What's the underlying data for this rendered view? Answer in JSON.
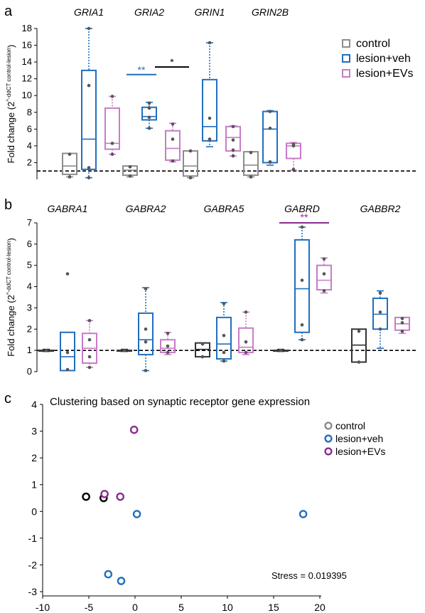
{
  "colors": {
    "control": "#8c8c8c",
    "control_b": "#333333",
    "veh": "#1f6fbf",
    "evs": "#c77cc7",
    "evs_dark": "#8a2d8f",
    "point": "#555555",
    "baseline": "#000000"
  },
  "chart_data": [
    {
      "panel": "a",
      "type": "box",
      "ylabel_main": "Fold change (2",
      "ylabel_sup": "^-ddCT control-lesion",
      "ylabel_end": ")",
      "ylim": [
        0,
        18
      ],
      "yticks": [
        2,
        4,
        6,
        8,
        10,
        12,
        14,
        16,
        18
      ],
      "reference_line": 1,
      "genes": [
        "GRIA1",
        "GRIA2",
        "GRIN1",
        "GRIN2B"
      ],
      "legend": [
        "control",
        "lesion+veh",
        "lesion+EVs"
      ],
      "series": [
        {
          "gene": "GRIA1",
          "group": "control",
          "min": 0.3,
          "q1": 0.6,
          "median": 1.6,
          "q3": 3.1,
          "max": 3.1,
          "points": [
            3.0,
            0.3
          ]
        },
        {
          "gene": "GRIA1",
          "group": "lesion+veh",
          "min": 0.2,
          "q1": 1.2,
          "median": 4.8,
          "q3": 13.0,
          "max": 18.0,
          "points": [
            18.0,
            11.2,
            1.4,
            0.2
          ]
        },
        {
          "gene": "GRIA1",
          "group": "lesion+EVs",
          "min": 3.0,
          "q1": 3.6,
          "median": 4.3,
          "q3": 8.5,
          "max": 9.9,
          "points": [
            9.9,
            4.3,
            3.0
          ]
        },
        {
          "gene": "GRIA2",
          "group": "control",
          "min": 0.3,
          "q1": 0.5,
          "median": 1.1,
          "q3": 1.6,
          "max": 1.6,
          "points": [
            1.5,
            0.4
          ]
        },
        {
          "gene": "GRIA2",
          "group": "lesion+veh",
          "min": 6.1,
          "q1": 7.1,
          "median": 7.5,
          "q3": 8.6,
          "max": 9.2,
          "points": [
            9.1,
            8.5,
            7.4,
            6.1
          ]
        },
        {
          "gene": "GRIA2",
          "group": "lesion+EVs",
          "min": 2.1,
          "q1": 2.3,
          "median": 3.7,
          "q3": 5.8,
          "max": 6.7,
          "points": [
            6.6,
            4.8,
            2.2
          ]
        },
        {
          "gene": "GRIN1",
          "group": "control",
          "min": 0.2,
          "q1": 0.4,
          "median": 1.6,
          "q3": 3.4,
          "max": 3.4,
          "points": [
            3.4,
            0.2
          ]
        },
        {
          "gene": "GRIN1",
          "group": "lesion+veh",
          "min": 3.9,
          "q1": 4.6,
          "median": 6.3,
          "q3": 11.9,
          "max": 16.3,
          "points": [
            16.3,
            7.3,
            4.8
          ]
        },
        {
          "gene": "GRIN1",
          "group": "lesion+EVs",
          "min": 2.8,
          "q1": 3.4,
          "median": 5.0,
          "q3": 6.3,
          "max": 6.4,
          "points": [
            6.3,
            4.7,
            2.8,
            3.5
          ]
        },
        {
          "gene": "GRIN2B",
          "group": "control",
          "min": 0.3,
          "q1": 0.5,
          "median": 1.7,
          "q3": 3.3,
          "max": 3.3,
          "points": [
            3.2,
            0.3
          ]
        },
        {
          "gene": "GRIN2B",
          "group": "lesion+veh",
          "min": 1.7,
          "q1": 2.0,
          "median": 6.0,
          "q3": 8.1,
          "max": 8.2,
          "points": [
            8.1,
            6.1,
            2.1
          ]
        },
        {
          "gene": "GRIN2B",
          "group": "lesion+EVs",
          "min": 1.1,
          "q1": 2.5,
          "median": 4.0,
          "q3": 4.3,
          "max": 4.4,
          "points": [
            4.2,
            4.0,
            1.2
          ]
        }
      ],
      "significance": [
        {
          "label": "**",
          "gene": "GRIA2",
          "from": "control",
          "to": "lesion+veh",
          "y": 12.5,
          "color_key": "veh"
        },
        {
          "label": "*",
          "gene": "GRIA2",
          "from": "lesion+EVs",
          "to": "GRIN1 control",
          "y": 13.4,
          "color_key": "baseline"
        }
      ]
    },
    {
      "panel": "b",
      "type": "box",
      "ylabel_main": "Fold change (2",
      "ylabel_sup": "^-ddCT control-lesion",
      "ylabel_end": ")",
      "ylim": [
        0,
        7
      ],
      "yticks": [
        0,
        1,
        2,
        3,
        4,
        5,
        6,
        7
      ],
      "reference_line": 1,
      "genes": [
        "GABRA1",
        "GABRA2",
        "GABRA5",
        "GABRD",
        "GABBR2"
      ],
      "series": [
        {
          "gene": "GABRA1",
          "group": "control",
          "min": 0.95,
          "q1": 1.0,
          "median": 1.0,
          "q3": 1.0,
          "max": 1.05,
          "points": [
            1.0
          ]
        },
        {
          "gene": "GABRA1",
          "group": "lesion+veh",
          "min": 0.05,
          "q1": 0.05,
          "median": 0.7,
          "q3": 1.85,
          "max": 1.85,
          "points": [
            4.6,
            0.9,
            0.1
          ]
        },
        {
          "gene": "GABRA1",
          "group": "lesion+EVs",
          "min": 0.2,
          "q1": 0.4,
          "median": 1.1,
          "q3": 1.8,
          "max": 2.4,
          "points": [
            2.4,
            1.5,
            0.7,
            0.2
          ]
        },
        {
          "gene": "GABRA2",
          "group": "control",
          "min": 0.95,
          "q1": 1.0,
          "median": 1.0,
          "q3": 1.0,
          "max": 1.05,
          "points": [
            1.0
          ]
        },
        {
          "gene": "GABRA2",
          "group": "lesion+veh",
          "min": 0.05,
          "q1": 0.8,
          "median": 1.5,
          "q3": 2.75,
          "max": 3.95,
          "points": [
            3.9,
            2.0,
            1.4,
            0.05
          ]
        },
        {
          "gene": "GABRA2",
          "group": "lesion+EVs",
          "min": 0.8,
          "q1": 0.9,
          "median": 1.1,
          "q3": 1.5,
          "max": 1.85,
          "points": [
            1.8,
            1.2,
            0.9
          ]
        },
        {
          "gene": "GABRA5",
          "group": "control",
          "min": 0.7,
          "q1": 0.7,
          "median": 1.05,
          "q3": 1.35,
          "max": 1.35,
          "points": [
            1.3,
            0.7
          ]
        },
        {
          "gene": "GABRA5",
          "group": "lesion+veh",
          "min": 0.5,
          "q1": 0.6,
          "median": 1.3,
          "q3": 2.55,
          "max": 3.25,
          "points": [
            3.2,
            1.7,
            0.9,
            0.5
          ]
        },
        {
          "gene": "GABRA5",
          "group": "lesion+EVs",
          "min": 0.8,
          "q1": 0.9,
          "median": 1.15,
          "q3": 2.05,
          "max": 2.8,
          "points": [
            2.8,
            1.4,
            0.9
          ]
        },
        {
          "gene": "GABRD",
          "group": "control",
          "min": 0.95,
          "q1": 1.0,
          "median": 1.0,
          "q3": 1.0,
          "max": 1.05,
          "points": [
            1.0
          ]
        },
        {
          "gene": "GABRD",
          "group": "lesion+veh",
          "min": 1.5,
          "q1": 1.85,
          "median": 3.9,
          "q3": 6.2,
          "max": 6.8,
          "points": [
            6.8,
            4.3,
            2.2,
            1.5
          ]
        },
        {
          "gene": "GABRD",
          "group": "lesion+EVs",
          "min": 3.7,
          "q1": 3.85,
          "median": 4.3,
          "q3": 5.0,
          "max": 5.35,
          "points": [
            5.3,
            4.6,
            3.8
          ]
        },
        {
          "gene": "GABBR2",
          "group": "control",
          "min": 0.45,
          "q1": 0.45,
          "median": 1.25,
          "q3": 2.0,
          "max": 2.0,
          "points": [
            1.9,
            0.45
          ]
        },
        {
          "gene": "GABBR2",
          "group": "lesion+veh",
          "min": 1.1,
          "q1": 2.0,
          "median": 2.7,
          "q3": 3.45,
          "max": 3.8,
          "points": [
            3.7,
            2.8,
            2.0
          ]
        },
        {
          "gene": "GABBR2",
          "group": "lesion+EVs",
          "min": 1.8,
          "q1": 1.95,
          "median": 2.25,
          "q3": 2.55,
          "max": 2.55,
          "points": [
            2.5,
            2.3,
            1.9
          ]
        }
      ],
      "significance": [
        {
          "label": "**",
          "gene": "GABRD",
          "from": "control",
          "to": "lesion+EVs",
          "y": 7.0,
          "color_key": "evs_dark"
        }
      ]
    },
    {
      "panel": "c",
      "type": "scatter",
      "title": "Clustering based on synaptic receptor gene expression",
      "xlim": [
        -10,
        20
      ],
      "ylim": [
        -3,
        4
      ],
      "xticks": [
        -10,
        -5,
        0,
        5,
        10,
        15,
        20
      ],
      "yticks": [
        -3,
        -2,
        -1,
        0,
        1,
        2,
        3,
        4
      ],
      "legend": [
        "control",
        "lesion+veh",
        "lesion+EVs"
      ],
      "annotation": "Stress = 0.019395",
      "series": [
        {
          "name": "control",
          "points": [
            [
              -5.3,
              0.55
            ],
            [
              -3.4,
              0.5
            ]
          ]
        },
        {
          "name": "lesion+veh",
          "points": [
            [
              0.2,
              -0.1
            ],
            [
              18.2,
              -0.1
            ],
            [
              -2.9,
              -2.35
            ],
            [
              -1.5,
              -2.6
            ]
          ]
        },
        {
          "name": "lesion+EVs",
          "points": [
            [
              -0.1,
              3.05
            ],
            [
              -3.3,
              0.65
            ],
            [
              -1.6,
              0.55
            ]
          ]
        }
      ]
    }
  ],
  "panel_labels": [
    "a",
    "b",
    "c"
  ]
}
